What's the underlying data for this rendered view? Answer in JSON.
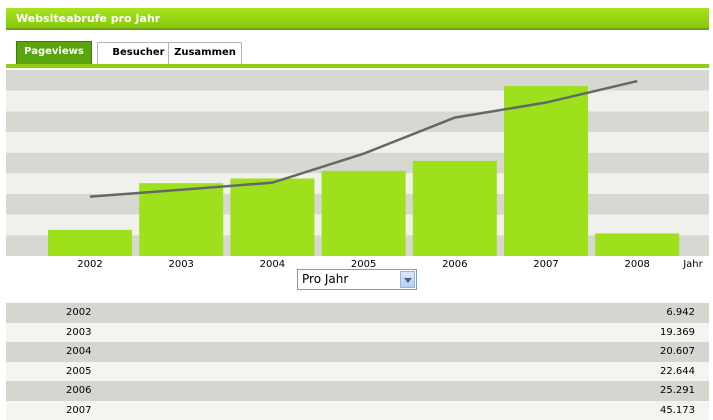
{
  "window": {
    "title": "Websiteabrufe pro Jahr"
  },
  "tabs": [
    {
      "label": "Pageviews",
      "active": true
    },
    {
      "label": "Besucher",
      "active": false
    },
    {
      "label": "Zusammen",
      "active": false
    }
  ],
  "max_label": "45173",
  "period_select": {
    "value": "Pro Jahr"
  },
  "chart_data": {
    "type": "bar",
    "categories": [
      "2002",
      "2003",
      "2004",
      "2005",
      "2006",
      "2007",
      "2008"
    ],
    "values": [
      6942,
      19369,
      20607,
      22644,
      25291,
      45173,
      6000
    ],
    "line_values": [
      15800,
      17600,
      19500,
      27200,
      36800,
      40800,
      46500
    ],
    "xlabel": "Jahr",
    "ylim": [
      0,
      45173
    ],
    "bar_color": "#9ee01c",
    "line_color": "#5f6a6a",
    "grid": true
  },
  "table": {
    "rows": [
      {
        "year": "2002",
        "value": "6.942"
      },
      {
        "year": "2003",
        "value": "19.369"
      },
      {
        "year": "2004",
        "value": "20.607"
      },
      {
        "year": "2005",
        "value": "22.644"
      },
      {
        "year": "2006",
        "value": "25.291"
      },
      {
        "year": "2007",
        "value": "45.173"
      }
    ]
  }
}
